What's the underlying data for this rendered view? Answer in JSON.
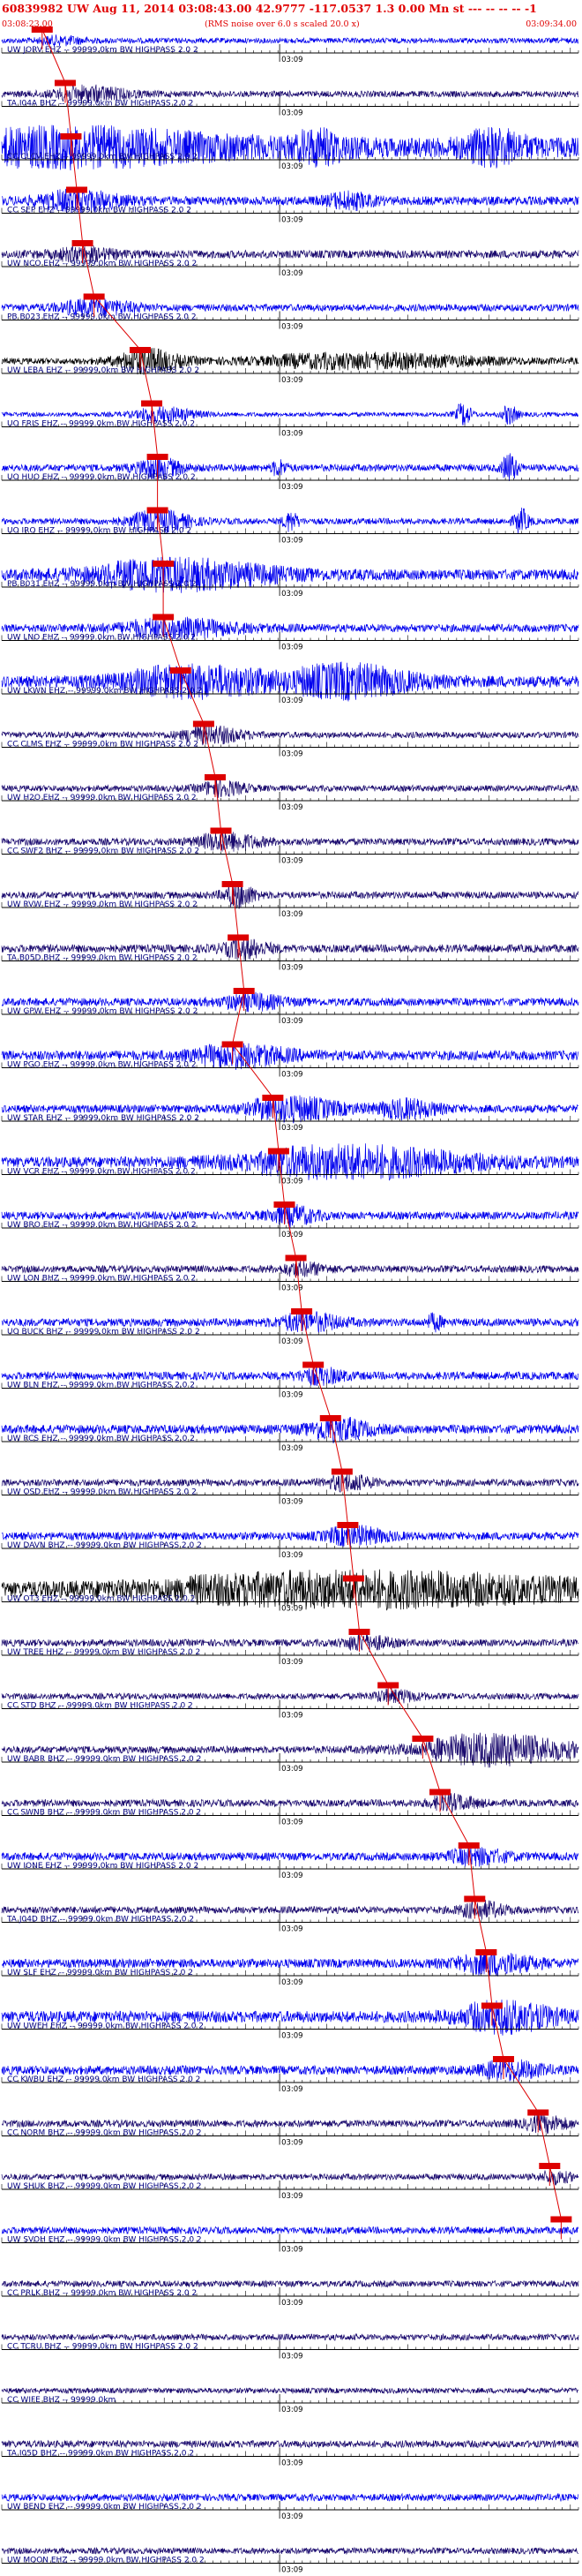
{
  "header": {
    "title": "60839982 UW Aug 11, 2014 03:08:43.00   42.9777 -117.0537  1.3 0.00 Mn st --- -- -- -- -1",
    "subtitle": "(RMS noise over 6.0 s scaled 20.0 x)",
    "start_time": "03:08:23.00",
    "end_time": "03:09:34.00"
  },
  "colors": {
    "header_red": "#e00000",
    "trace_blue": "#0000ee",
    "trace_navy": "#1a0a6e",
    "trace_black": "#000000",
    "pick_red": "#dd0000",
    "label_navy": "#000080"
  },
  "chart_data": {
    "type": "line",
    "title": "60839982 UW Aug 11, 2014 03:08:43.00   42.9777 -117.0537  1.3 0.00 Mn st --- -- -- -- -1",
    "subtitle": "(RMS noise over 6.0 s scaled 20.0 x)",
    "x_range_time": [
      "03:08:23.00",
      "03:09:34.00"
    ],
    "tick_label": "03:09",
    "grid": false,
    "legend": "none",
    "series": [
      {
        "label": "UW JORV EHZ -- 99999.0km BW  HIGHPASS  2.0  2",
        "color": "blue",
        "pick": 0.07,
        "amp": 0.6,
        "events": [
          [
            0.1,
            0.8,
            0.03
          ]
        ]
      },
      {
        "label": "TA I04A BHZ -- 99999.0km BW  HIGHPASS  2.0  2",
        "color": "navy",
        "pick": 0.11,
        "amp": 0.7,
        "events": [
          [
            0.15,
            1.5,
            0.05
          ]
        ]
      },
      {
        "label": "CC CLCV EHZ -- 99999.0km BW  HIGHPASS  2.0  2",
        "color": "blue",
        "pick": 0.12,
        "amp": 2.2,
        "events": [
          [
            0.12,
            3.0,
            0.2
          ],
          [
            0.55,
            2.5,
            0.03
          ],
          [
            0.85,
            2.8,
            0.04
          ]
        ]
      },
      {
        "label": "CC SEP EHZ -- 99999.0km BW  HIGHPASS  2.0  2",
        "color": "blue",
        "pick": 0.13,
        "amp": 1.0,
        "events": [
          [
            0.13,
            2.0,
            0.05
          ],
          [
            0.6,
            1.5,
            0.03
          ]
        ]
      },
      {
        "label": "UW NCO EHZ -- 99999.0km BW  HIGHPASS  2.0  2",
        "color": "navy",
        "pick": 0.14,
        "amp": 0.9,
        "events": [
          [
            0.14,
            1.2,
            0.04
          ]
        ]
      },
      {
        "label": "PB B023 EHZ -- 99999.0km BW  HIGHPASS  2.0  2",
        "color": "blue",
        "pick": 0.16,
        "amp": 0.8,
        "events": [
          [
            0.16,
            1.5,
            0.05
          ]
        ]
      },
      {
        "label": "UW LEBA EHZ -- 99999.0km BW  HIGHPASS  2.0  2",
        "color": "black",
        "pick": 0.24,
        "amp": 0.7,
        "events": [
          [
            0.25,
            2.5,
            0.04
          ],
          [
            0.62,
            1.5,
            0.15
          ]
        ]
      },
      {
        "label": "UO FRIS EHZ -- 99999.0km BW  HIGHPASS  2.0  2",
        "color": "blue",
        "pick": 0.26,
        "amp": 0.5,
        "events": [
          [
            0.28,
            1.5,
            0.04
          ],
          [
            0.8,
            2.5,
            0.01
          ],
          [
            0.88,
            2.0,
            0.01
          ]
        ]
      },
      {
        "label": "UO HUO EHZ -- 99999.0km BW  HIGHPASS  2.0  2",
        "color": "blue",
        "pick": 0.27,
        "amp": 0.8,
        "events": [
          [
            0.27,
            2.0,
            0.03
          ],
          [
            0.48,
            1.5,
            0.01
          ],
          [
            0.88,
            3.0,
            0.01
          ]
        ]
      },
      {
        "label": "UO IRO EHZ -- 99999.0km BW  HIGHPASS  2.0  2",
        "color": "blue",
        "pick": 0.27,
        "amp": 0.7,
        "events": [
          [
            0.27,
            2.2,
            0.04
          ],
          [
            0.5,
            2.0,
            0.01
          ],
          [
            0.9,
            2.5,
            0.01
          ]
        ]
      },
      {
        "label": "PB B031 EHZ -- 99999.0km BW  HIGHPASS  2.0  2",
        "color": "blue",
        "pick": 0.28,
        "amp": 1.2,
        "events": [
          [
            0.3,
            3.0,
            0.12
          ]
        ]
      },
      {
        "label": "UW LNO EHZ -- 99999.0km BW  HIGHPASS  2.0  2",
        "color": "blue",
        "pick": 0.28,
        "amp": 0.9,
        "events": [
          [
            0.3,
            1.8,
            0.08
          ]
        ]
      },
      {
        "label": "UW LKWN EHZ -- 99999.0km BW  HIGHPASS  2.0  2",
        "color": "blue",
        "pick": 0.31,
        "amp": 1.3,
        "events": [
          [
            0.33,
            3.0,
            0.1
          ],
          [
            0.6,
            3.2,
            0.08
          ]
        ]
      },
      {
        "label": "CC CLMS EHZ -- 99999.0km BW  HIGHPASS  2.0  2",
        "color": "navy",
        "pick": 0.35,
        "amp": 0.7,
        "events": [
          [
            0.36,
            1.8,
            0.04
          ]
        ]
      },
      {
        "label": "UW H2O EHZ -- 99999.0km BW  HIGHPASS  2.0  2",
        "color": "navy",
        "pick": 0.37,
        "amp": 0.7,
        "events": [
          [
            0.38,
            1.5,
            0.03
          ]
        ]
      },
      {
        "label": "CC SWF2 BHZ -- 99999.0km BW  HIGHPASS  2.0  2",
        "color": "navy",
        "pick": 0.38,
        "amp": 0.8,
        "events": [
          [
            0.39,
            1.8,
            0.04
          ]
        ]
      },
      {
        "label": "UW RVW EHZ -- 99999.0km BW  HIGHPASS  2.0  2",
        "color": "navy",
        "pick": 0.4,
        "amp": 0.8,
        "events": [
          [
            0.41,
            2.5,
            0.02
          ]
        ]
      },
      {
        "label": "TA B05D BHZ -- 99999.0km BW  HIGHPASS  2.0  2",
        "color": "navy",
        "pick": 0.41,
        "amp": 0.9,
        "events": [
          [
            0.42,
            1.8,
            0.03
          ]
        ]
      },
      {
        "label": "UW GPW EHZ -- 99999.0km BW  HIGHPASS  2.0  2",
        "color": "blue",
        "pick": 0.42,
        "amp": 0.9,
        "events": [
          [
            0.43,
            1.5,
            0.04
          ]
        ]
      },
      {
        "label": "UW PGO EHZ -- 99999.0km BW  HIGHPASS  2.0  2",
        "color": "blue",
        "pick": 0.4,
        "amp": 1.1,
        "events": [
          [
            0.41,
            2.2,
            0.06
          ]
        ]
      },
      {
        "label": "UW STAR EHZ -- 99999.0km BW  HIGHPASS  2.0  2",
        "color": "blue",
        "pick": 0.47,
        "amp": 0.9,
        "events": [
          [
            0.5,
            2.5,
            0.06
          ],
          [
            0.7,
            1.8,
            0.04
          ]
        ]
      },
      {
        "label": "UW VCR EHZ -- 99999.0km BW  HIGHPASS  2.0  2",
        "color": "blue",
        "pick": 0.48,
        "amp": 1.2,
        "events": [
          [
            0.6,
            3.2,
            0.15
          ]
        ]
      },
      {
        "label": "UW BRO EHZ -- 99999.0km BW  HIGHPASS  2.0  2",
        "color": "blue",
        "pick": 0.49,
        "amp": 0.9,
        "events": [
          [
            0.5,
            2.0,
            0.03
          ]
        ]
      },
      {
        "label": "UW LON BHZ -- 99999.0km BW  HIGHPASS  2.0  2",
        "color": "navy",
        "pick": 0.51,
        "amp": 0.8,
        "events": [
          [
            0.52,
            1.2,
            0.03
          ]
        ]
      },
      {
        "label": "UO BUCK BHZ -- 99999.0km BW  HIGHPASS  2.0  2",
        "color": "blue",
        "pick": 0.52,
        "amp": 0.9,
        "events": [
          [
            0.53,
            1.8,
            0.04
          ],
          [
            0.75,
            1.5,
            0.01
          ]
        ]
      },
      {
        "label": "UW BLN EHZ -- 99999.0km BW  HIGHPASS  2.0  2",
        "color": "blue",
        "pick": 0.54,
        "amp": 0.9,
        "events": [
          [
            0.55,
            1.5,
            0.03
          ]
        ]
      },
      {
        "label": "UW RCS EHZ -- 99999.0km BW  HIGHPASS  2.0  2",
        "color": "blue",
        "pick": 0.57,
        "amp": 1.0,
        "events": [
          [
            0.58,
            2.2,
            0.04
          ]
        ]
      },
      {
        "label": "UW OSD EHZ -- 99999.0km BW  HIGHPASS  2.0  2",
        "color": "navy",
        "pick": 0.59,
        "amp": 0.8,
        "events": [
          [
            0.6,
            1.5,
            0.03
          ]
        ]
      },
      {
        "label": "UW DAVN BHZ -- 99999.0km BW  HIGHPASS  2.0  2",
        "color": "blue",
        "pick": 0.6,
        "amp": 0.9,
        "events": [
          [
            0.61,
            1.8,
            0.04
          ]
        ]
      },
      {
        "label": "UW OT3 EHZ -- 99999.0km BW  HIGHPASS  2.0  2",
        "color": "black",
        "pick": 0.61,
        "amp": 1.5,
        "events": [
          [
            0.62,
            3.2,
            0.3
          ]
        ]
      },
      {
        "label": "UW TREE HHZ -- 99999.0km BW  HIGHPASS  2.0  2",
        "color": "navy",
        "pick": 0.62,
        "amp": 0.8,
        "events": [
          [
            0.63,
            1.5,
            0.03
          ]
        ]
      },
      {
        "label": "CC STD BHZ -- 99999.0km BW  HIGHPASS  2.0  2",
        "color": "navy",
        "pick": 0.67,
        "amp": 0.7,
        "events": [
          [
            0.68,
            1.2,
            0.03
          ]
        ]
      },
      {
        "label": "UW BABR BHZ -- 99999.0km BW  HIGHPASS  2.0  2",
        "color": "navy",
        "pick": 0.73,
        "amp": 0.8,
        "events": [
          [
            0.85,
            3.3,
            0.1
          ]
        ]
      },
      {
        "label": "CC SWNB BHZ -- 99999.0km BW  HIGHPASS  2.0  2",
        "color": "navy",
        "pick": 0.76,
        "amp": 0.8,
        "events": [
          [
            0.78,
            1.5,
            0.03
          ]
        ]
      },
      {
        "label": "UW IONE EHZ -- 99999.0km BW  HIGHPASS  2.0  2",
        "color": "blue",
        "pick": 0.81,
        "amp": 0.9,
        "events": [
          [
            0.82,
            1.5,
            0.04
          ]
        ]
      },
      {
        "label": "TA J04D BHZ -- 99999.0km BW  HIGHPASS  2.0  2",
        "color": "navy",
        "pick": 0.82,
        "amp": 0.8,
        "events": [
          [
            0.83,
            1.6,
            0.03
          ]
        ]
      },
      {
        "label": "UW SLF EHZ -- 99999.0km BW  HIGHPASS  2.0  2",
        "color": "blue",
        "pick": 0.84,
        "amp": 1.0,
        "events": [
          [
            0.85,
            2.2,
            0.05
          ]
        ]
      },
      {
        "label": "UW UWEH EHZ -- 99999.0km BW  HIGHPASS  2.0  2",
        "color": "blue",
        "pick": 0.85,
        "amp": 1.3,
        "events": [
          [
            0.87,
            3.0,
            0.06
          ]
        ]
      },
      {
        "label": "CC KWBU EHZ -- 99999.0km BW  HIGHPASS  2.0  2",
        "color": "blue",
        "pick": 0.87,
        "amp": 1.0,
        "events": [
          [
            0.88,
            1.8,
            0.04
          ]
        ]
      },
      {
        "label": "CC NORM BHZ -- 99999.0km BW  HIGHPASS  2.0  2",
        "color": "navy",
        "pick": 0.93,
        "amp": 0.8,
        "events": [
          [
            0.94,
            1.5,
            0.03
          ]
        ]
      },
      {
        "label": "UW SHUK BHZ -- 99999.0km BW  HIGHPASS  2.0  2",
        "color": "navy",
        "pick": 0.95,
        "amp": 0.7,
        "events": [
          [
            0.96,
            1.2,
            0.02
          ]
        ]
      },
      {
        "label": "UW SVOH EHZ -- 99999.0km BW  HIGHPASS  2.0  2",
        "color": "blue",
        "pick": 0.97,
        "amp": 0.8,
        "events": []
      },
      {
        "label": "CC PRLK BHZ -- 99999.0km BW  HIGHPASS  2.0  2",
        "color": "navy",
        "pick": null,
        "amp": 0.7,
        "events": []
      },
      {
        "label": "CC TCRU BHZ -- 99999.0km BW  HIGHPASS  2.0  2",
        "color": "navy",
        "pick": null,
        "amp": 0.7,
        "events": []
      },
      {
        "label": "CC WIFE BHZ -- 99999.0km",
        "color": "navy",
        "pick": null,
        "amp": 0.6,
        "events": []
      },
      {
        "label": "TA I05D BHZ -- 99999.0km BW  HIGHPASS  2.0  2",
        "color": "navy",
        "pick": null,
        "amp": 0.8,
        "events": []
      },
      {
        "label": "UW BEND EHZ -- 99999.0km BW  HIGHPASS  2.0  2",
        "color": "blue",
        "pick": null,
        "amp": 0.8,
        "events": []
      },
      {
        "label": "UW MOON EHZ -- 99999.0km BW  HIGHPASS  2.0  2",
        "color": "navy",
        "pick": null,
        "amp": 0.7,
        "events": []
      }
    ]
  }
}
